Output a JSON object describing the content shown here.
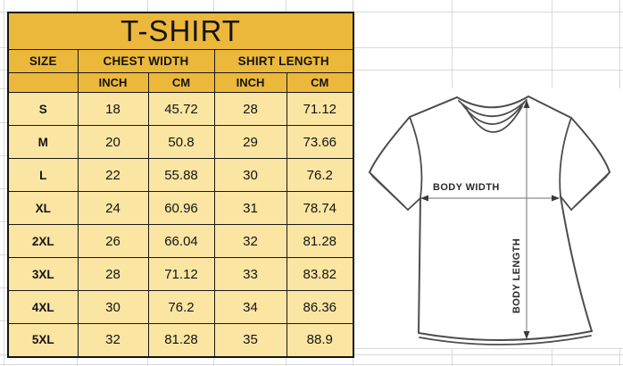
{
  "title": "T-SHIRT",
  "table": {
    "size_header": "SIZE",
    "chest_width_header": "CHEST WIDTH",
    "shirt_length_header": "SHIRT LENGTH",
    "unit_headers": [
      "INCH",
      "CM",
      "INCH",
      "CM"
    ],
    "rows": [
      {
        "size": "S",
        "chest_inch": "18",
        "chest_cm": "45.72",
        "length_inch": "28",
        "length_cm": "71.12"
      },
      {
        "size": "M",
        "chest_inch": "20",
        "chest_cm": "50.8",
        "length_inch": "29",
        "length_cm": "73.66"
      },
      {
        "size": "L",
        "chest_inch": "22",
        "chest_cm": "55.88",
        "length_inch": "30",
        "length_cm": "76.2"
      },
      {
        "size": "XL",
        "chest_inch": "24",
        "chest_cm": "60.96",
        "length_inch": "31",
        "length_cm": "78.74"
      },
      {
        "size": "2XL",
        "chest_inch": "26",
        "chest_cm": "66.04",
        "length_inch": "32",
        "length_cm": "81.28"
      },
      {
        "size": "3XL",
        "chest_inch": "28",
        "chest_cm": "71.12",
        "length_inch": "33",
        "length_cm": "83.82"
      },
      {
        "size": "4XL",
        "chest_inch": "30",
        "chest_cm": "76.2",
        "length_inch": "34",
        "length_cm": "86.36"
      },
      {
        "size": "5XL",
        "chest_inch": "32",
        "chest_cm": "81.28",
        "length_inch": "35",
        "length_cm": "88.9"
      }
    ]
  },
  "diagram": {
    "body_width_label": "BODY WIDTH",
    "body_length_label": "BODY LENGTH"
  },
  "colors": {
    "table_header_fill": "#ECB83B",
    "table_row_fill": "#FBE5A2",
    "table_border": "#1A1A1A",
    "sheet_gridline": "#D9D9D9",
    "shirt_outline": "#4D4D4D"
  }
}
